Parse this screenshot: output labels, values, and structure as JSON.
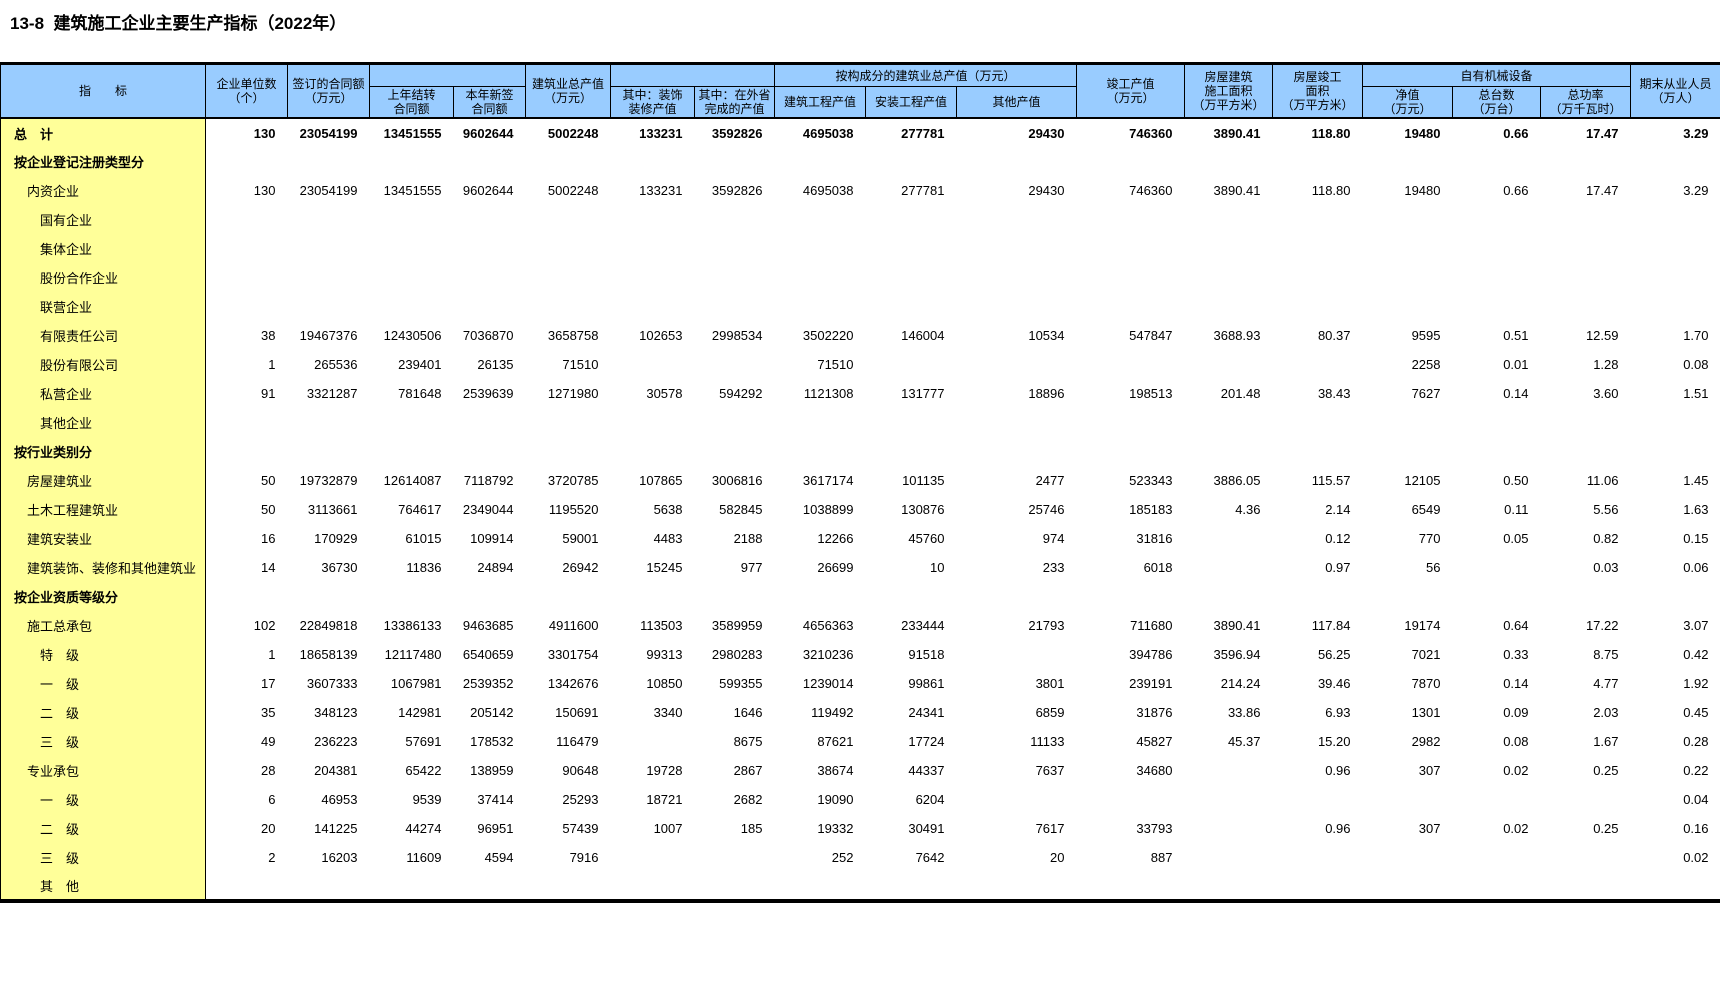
{
  "title": "13-8  建筑施工企业主要生产指标（2022年）",
  "colors": {
    "header_bg": "#99CCFF",
    "label_bg": "#FFFF99"
  },
  "table": {
    "header": {
      "indicator": "指　　标",
      "units": "企业单位数\n（个）",
      "contract_signed": "签订的合同额\n（万元）",
      "carryover": "上年结转\n合同额",
      "new_signed": "本年新签\n合同额",
      "gross_output": "建筑业总产值\n（万元）",
      "decoration": "其中：装饰\n装修产值",
      "outside_province": "其中：在外省\n完成的产值",
      "by_composition_group": "按构成分的建筑业总产值（万元）",
      "construction_output": "建筑工程产值",
      "installation_output": "安装工程产值",
      "other_output": "其他产值",
      "completed_output": "竣工产值\n（万元）",
      "floor_space_construction": "房屋建筑\n施工面积\n（万平方米）",
      "floor_space_completed": "房屋竣工\n面积\n（万平方米）",
      "machinery_group": "自有机械设备",
      "net_value": "净值\n（万元）",
      "machine_count": "总台数\n（万台）",
      "total_power": "总功率\n（万千瓦时）",
      "employees": "期末从业人员\n（万人）"
    },
    "rows": [
      {
        "label": "总　计",
        "level": 0,
        "bold": true,
        "values": [
          "130",
          "23054199",
          "13451555",
          "9602644",
          "5002248",
          "133231",
          "3592826",
          "4695038",
          "277781",
          "29430",
          "746360",
          "3890.41",
          "118.80",
          "19480",
          "0.66",
          "17.47",
          "3.29"
        ]
      },
      {
        "label": "按企业登记注册类型分",
        "level": 0,
        "bold": true,
        "values": []
      },
      {
        "label": "内资企业",
        "level": 1,
        "bold": false,
        "values": [
          "130",
          "23054199",
          "13451555",
          "9602644",
          "5002248",
          "133231",
          "3592826",
          "4695038",
          "277781",
          "29430",
          "746360",
          "3890.41",
          "118.80",
          "19480",
          "0.66",
          "17.47",
          "3.29"
        ]
      },
      {
        "label": "国有企业",
        "level": 2,
        "bold": false,
        "values": []
      },
      {
        "label": "集体企业",
        "level": 2,
        "bold": false,
        "values": []
      },
      {
        "label": "股份合作企业",
        "level": 2,
        "bold": false,
        "values": []
      },
      {
        "label": "联营企业",
        "level": 2,
        "bold": false,
        "values": []
      },
      {
        "label": "有限责任公司",
        "level": 2,
        "bold": false,
        "values": [
          "38",
          "19467376",
          "12430506",
          "7036870",
          "3658758",
          "102653",
          "2998534",
          "3502220",
          "146004",
          "10534",
          "547847",
          "3688.93",
          "80.37",
          "9595",
          "0.51",
          "12.59",
          "1.70"
        ]
      },
      {
        "label": "股份有限公司",
        "level": 2,
        "bold": false,
        "values": [
          "1",
          "265536",
          "239401",
          "26135",
          "71510",
          "",
          "",
          "71510",
          "",
          "",
          "",
          "",
          "",
          "2258",
          "0.01",
          "1.28",
          "0.08"
        ]
      },
      {
        "label": "私营企业",
        "level": 2,
        "bold": false,
        "values": [
          "91",
          "3321287",
          "781648",
          "2539639",
          "1271980",
          "30578",
          "594292",
          "1121308",
          "131777",
          "18896",
          "198513",
          "201.48",
          "38.43",
          "7627",
          "0.14",
          "3.60",
          "1.51"
        ]
      },
      {
        "label": "其他企业",
        "level": 2,
        "bold": false,
        "values": []
      },
      {
        "label": "按行业类别分",
        "level": 0,
        "bold": true,
        "values": []
      },
      {
        "label": "房屋建筑业",
        "level": 1,
        "bold": false,
        "values": [
          "50",
          "19732879",
          "12614087",
          "7118792",
          "3720785",
          "107865",
          "3006816",
          "3617174",
          "101135",
          "2477",
          "523343",
          "3886.05",
          "115.57",
          "12105",
          "0.50",
          "11.06",
          "1.45"
        ]
      },
      {
        "label": "土木工程建筑业",
        "level": 1,
        "bold": false,
        "values": [
          "50",
          "3113661",
          "764617",
          "2349044",
          "1195520",
          "5638",
          "582845",
          "1038899",
          "130876",
          "25746",
          "185183",
          "4.36",
          "2.14",
          "6549",
          "0.11",
          "5.56",
          "1.63"
        ]
      },
      {
        "label": "建筑安装业",
        "level": 1,
        "bold": false,
        "values": [
          "16",
          "170929",
          "61015",
          "109914",
          "59001",
          "4483",
          "2188",
          "12266",
          "45760",
          "974",
          "31816",
          "",
          "0.12",
          "770",
          "0.05",
          "0.82",
          "0.15"
        ]
      },
      {
        "label": "建筑装饰、装修和其他建筑业",
        "level": 1,
        "bold": false,
        "values": [
          "14",
          "36730",
          "11836",
          "24894",
          "26942",
          "15245",
          "977",
          "26699",
          "10",
          "233",
          "6018",
          "",
          "0.97",
          "56",
          "",
          "0.03",
          "0.06"
        ]
      },
      {
        "label": "按企业资质等级分",
        "level": 0,
        "bold": true,
        "values": []
      },
      {
        "label": "施工总承包",
        "level": 1,
        "bold": false,
        "values": [
          "102",
          "22849818",
          "13386133",
          "9463685",
          "4911600",
          "113503",
          "3589959",
          "4656363",
          "233444",
          "21793",
          "711680",
          "3890.41",
          "117.84",
          "19174",
          "0.64",
          "17.22",
          "3.07"
        ]
      },
      {
        "label": "特　级",
        "level": 2,
        "bold": false,
        "values": [
          "1",
          "18658139",
          "12117480",
          "6540659",
          "3301754",
          "99313",
          "2980283",
          "3210236",
          "91518",
          "",
          "394786",
          "3596.94",
          "56.25",
          "7021",
          "0.33",
          "8.75",
          "0.42"
        ]
      },
      {
        "label": "一　级",
        "level": 2,
        "bold": false,
        "values": [
          "17",
          "3607333",
          "1067981",
          "2539352",
          "1342676",
          "10850",
          "599355",
          "1239014",
          "99861",
          "3801",
          "239191",
          "214.24",
          "39.46",
          "7870",
          "0.14",
          "4.77",
          "1.92"
        ]
      },
      {
        "label": "二　级",
        "level": 2,
        "bold": false,
        "values": [
          "35",
          "348123",
          "142981",
          "205142",
          "150691",
          "3340",
          "1646",
          "119492",
          "24341",
          "6859",
          "31876",
          "33.86",
          "6.93",
          "1301",
          "0.09",
          "2.03",
          "0.45"
        ]
      },
      {
        "label": "三　级",
        "level": 2,
        "bold": false,
        "values": [
          "49",
          "236223",
          "57691",
          "178532",
          "116479",
          "",
          "8675",
          "87621",
          "17724",
          "11133",
          "45827",
          "45.37",
          "15.20",
          "2982",
          "0.08",
          "1.67",
          "0.28"
        ]
      },
      {
        "label": "专业承包",
        "level": 1,
        "bold": false,
        "values": [
          "28",
          "204381",
          "65422",
          "138959",
          "90648",
          "19728",
          "2867",
          "38674",
          "44337",
          "7637",
          "34680",
          "",
          "0.96",
          "307",
          "0.02",
          "0.25",
          "0.22"
        ]
      },
      {
        "label": "一　级",
        "level": 2,
        "bold": false,
        "values": [
          "6",
          "46953",
          "9539",
          "37414",
          "25293",
          "18721",
          "2682",
          "19090",
          "6204",
          "",
          "",
          "",
          "",
          "",
          "",
          "",
          "0.04"
        ]
      },
      {
        "label": "二　级",
        "level": 2,
        "bold": false,
        "values": [
          "20",
          "141225",
          "44274",
          "96951",
          "57439",
          "1007",
          "185",
          "19332",
          "30491",
          "7617",
          "33793",
          "",
          "0.96",
          "307",
          "0.02",
          "0.25",
          "0.16"
        ]
      },
      {
        "label": "三　级",
        "level": 2,
        "bold": false,
        "values": [
          "2",
          "16203",
          "11609",
          "4594",
          "7916",
          "",
          "",
          "252",
          "7642",
          "20",
          "887",
          "",
          "",
          "",
          "",
          "",
          "0.02"
        ]
      },
      {
        "label": "其　他",
        "level": 2,
        "bold": false,
        "values": []
      }
    ]
  }
}
